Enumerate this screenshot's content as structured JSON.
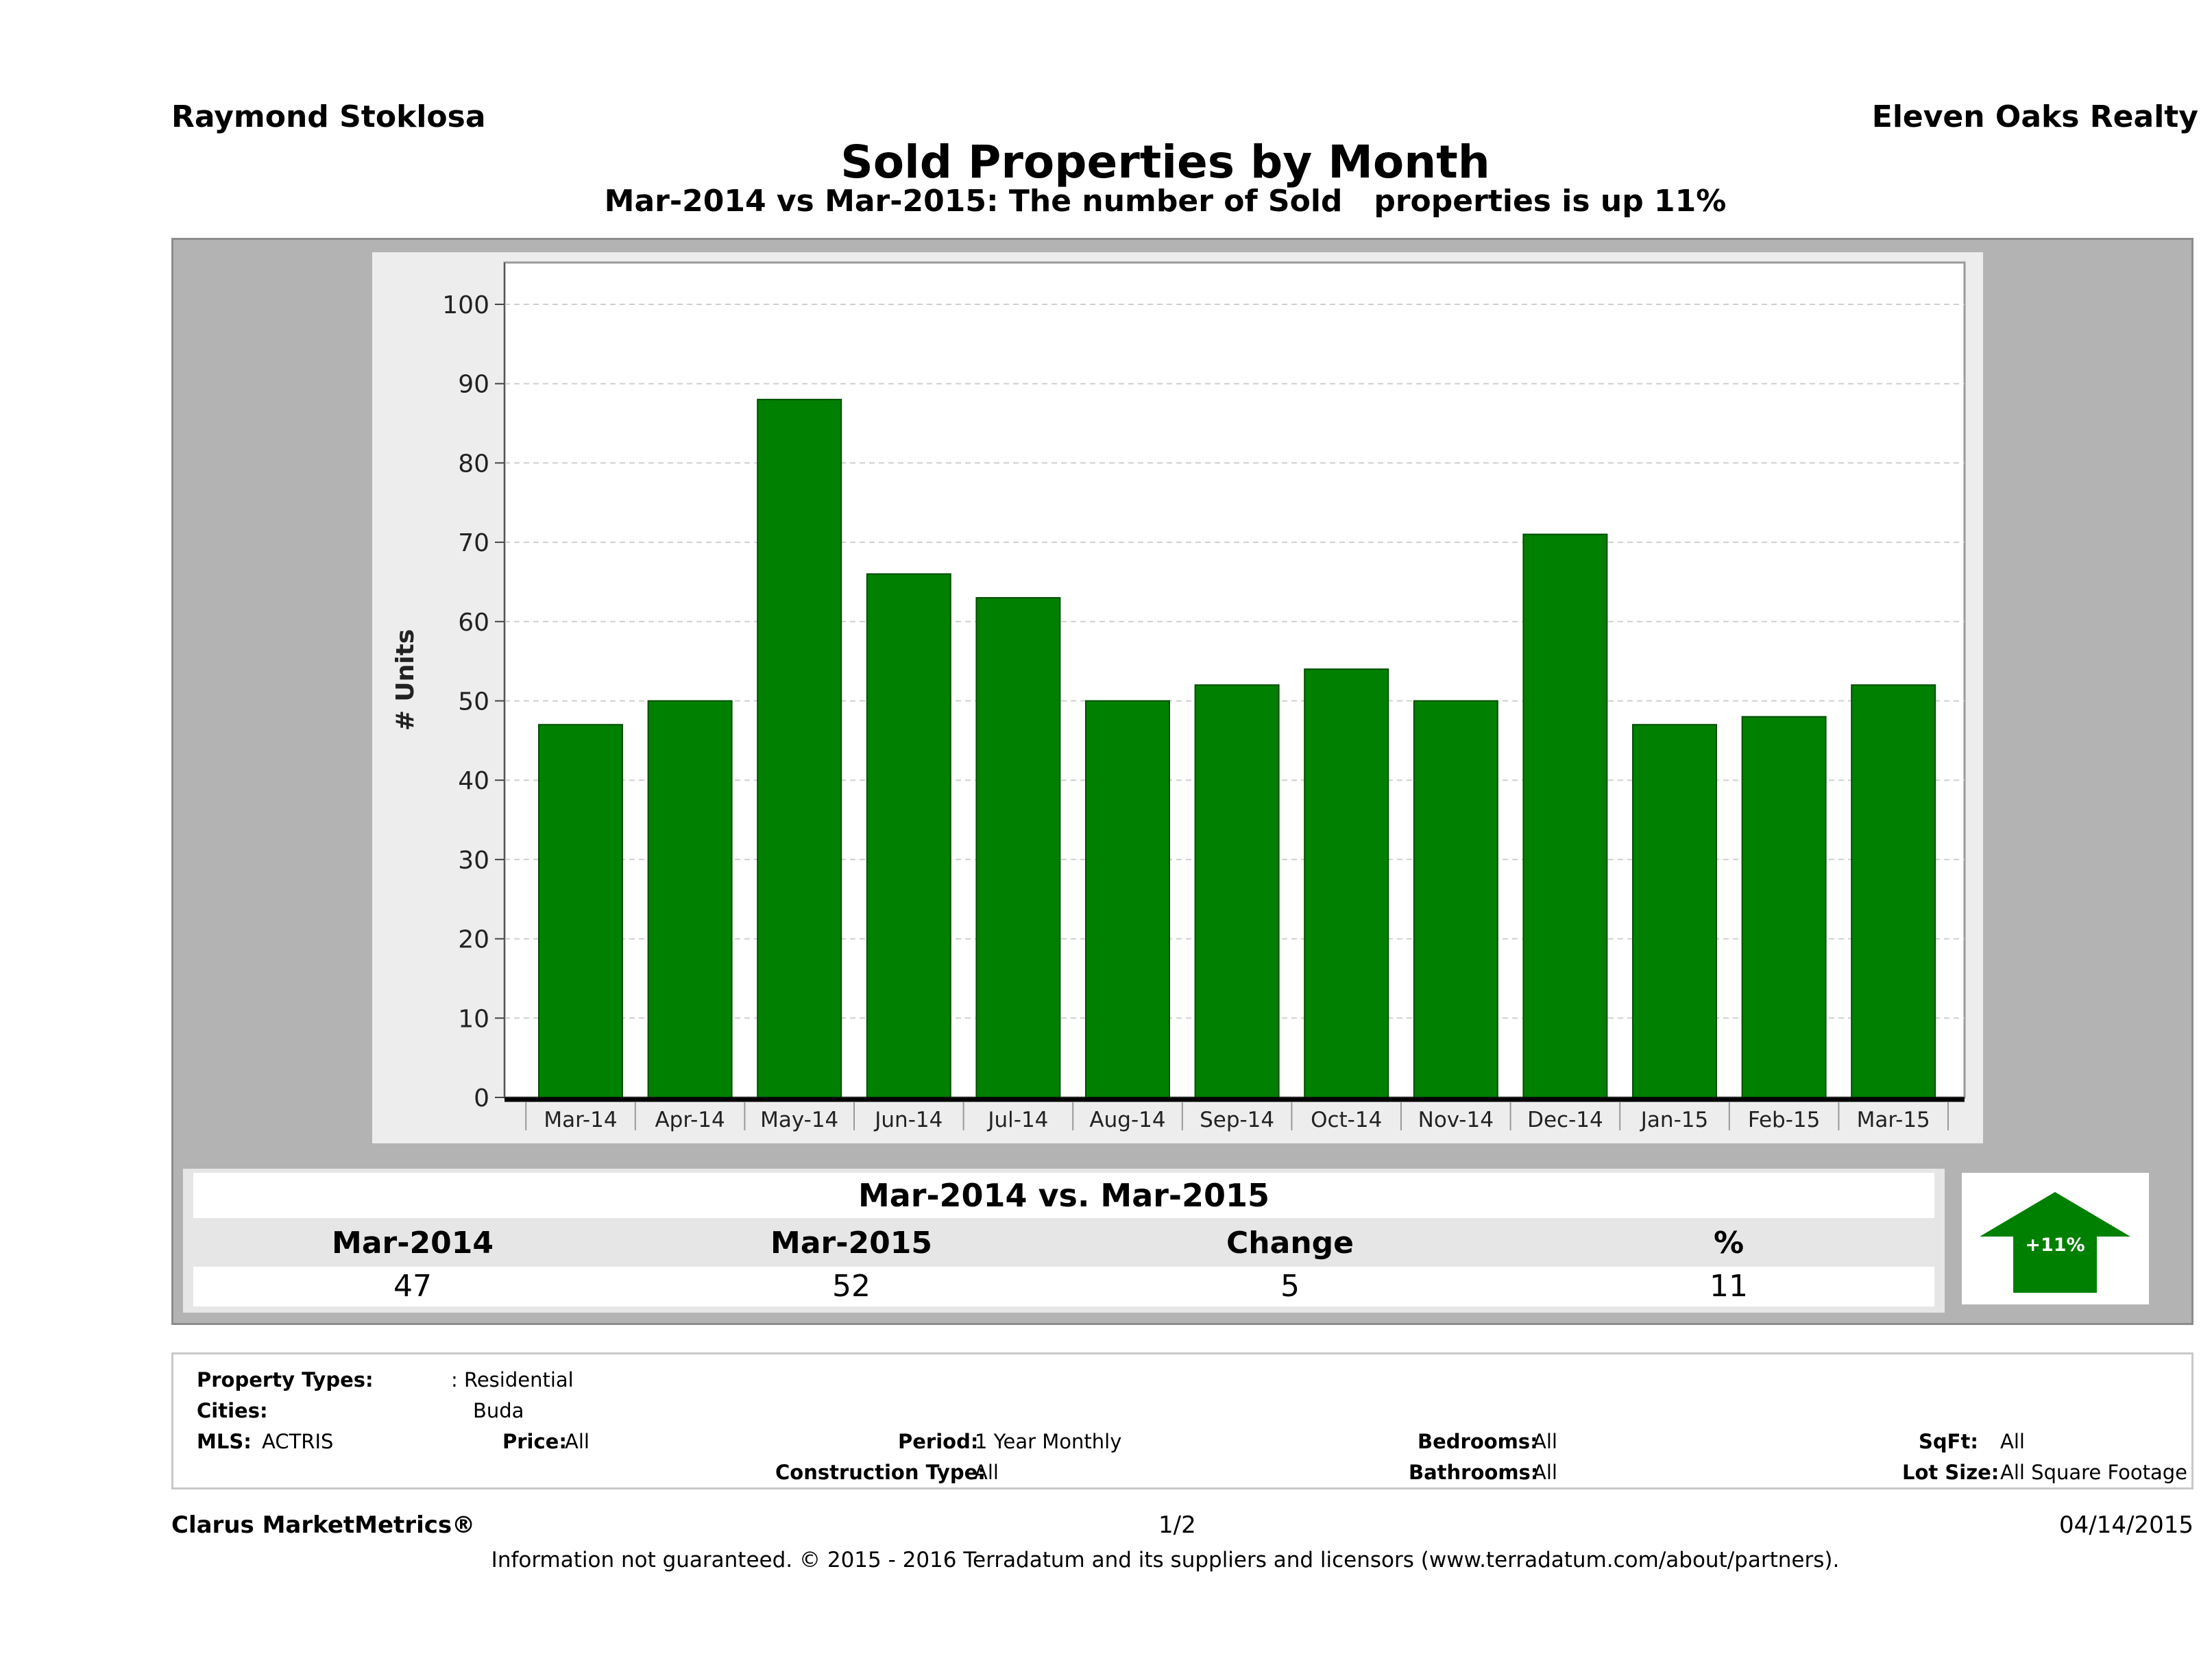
{
  "header": {
    "agent_name": "Raymond Stoklosa",
    "brokerage": "Eleven Oaks Realty",
    "title": "Sold Properties by Month",
    "subtitle": "Mar-2014 vs Mar-2015: The number of Sold   properties is up 11%"
  },
  "chart_data": {
    "type": "bar",
    "title": "Sold Properties by Month",
    "ylabel": "# Units",
    "xlabel": "",
    "ylim": [
      0,
      100
    ],
    "yticks": [
      0,
      10,
      20,
      30,
      40,
      50,
      60,
      70,
      80,
      90,
      100
    ],
    "categories": [
      "Mar-14",
      "Apr-14",
      "May-14",
      "Jun-14",
      "Jul-14",
      "Aug-14",
      "Sep-14",
      "Oct-14",
      "Nov-14",
      "Dec-14",
      "Jan-15",
      "Feb-15",
      "Mar-15"
    ],
    "values": [
      47,
      50,
      88,
      66,
      63,
      50,
      52,
      54,
      50,
      71,
      47,
      48,
      52
    ],
    "bar_color": "#008000",
    "grid": true
  },
  "comparison": {
    "title": "Mar-2014 vs. Mar-2015",
    "headers": [
      "Mar-2014",
      "Mar-2015",
      "Change",
      "%"
    ],
    "values": [
      "47",
      "52",
      "5",
      "11"
    ],
    "badge": "+11%",
    "badge_color": "#008000"
  },
  "criteria": {
    "property_types_label": "Property Types:",
    "property_types_value": ": Residential",
    "cities_label": "Cities:",
    "cities_value": "Buda",
    "mls_label": "MLS:",
    "mls_value": "ACTRIS",
    "price_label": "Price:",
    "price_value": "All",
    "period_label": "Period:",
    "period_value": "1 Year Monthly",
    "construction_label": "Construction Type:",
    "construction_value": "All",
    "bedrooms_label": "Bedrooms:",
    "bedrooms_value": "All",
    "bathrooms_label": "Bathrooms:",
    "bathrooms_value": "All",
    "sqft_label": "SqFt:",
    "sqft_value": "All",
    "lot_label": "Lot Size:",
    "lot_value": "All Square Footage"
  },
  "footer": {
    "brand": "Clarus MarketMetrics®",
    "page": "1/2",
    "date": "04/14/2015",
    "disclaimer": "Information not guaranteed. © 2015 - 2016 Terradatum and its suppliers and licensors (www.terradatum.com/about/partners)."
  }
}
